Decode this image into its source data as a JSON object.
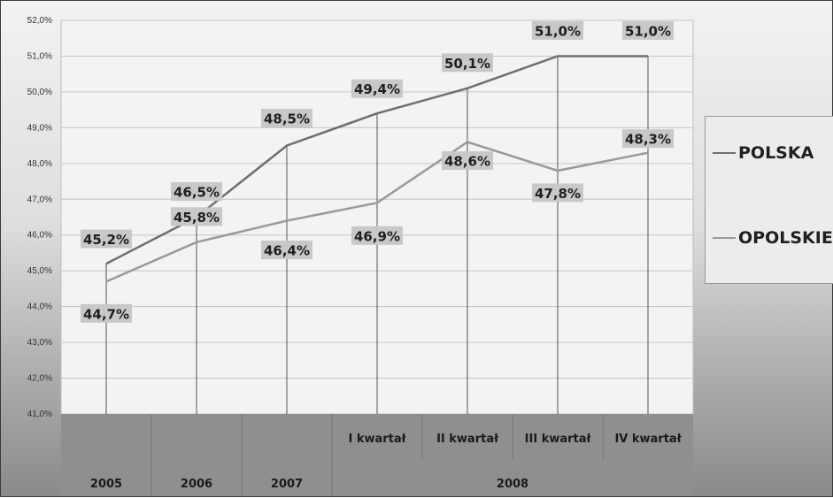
{
  "chart_data": {
    "type": "line",
    "categories": [
      "2005",
      "2006",
      "2007",
      "I kwartał",
      "II kwartał",
      "III kwartał",
      "IV kwartał"
    ],
    "group_labels": [
      {
        "label": "2005",
        "span": [
          0,
          0
        ]
      },
      {
        "label": "2006",
        "span": [
          1,
          1
        ]
      },
      {
        "label": "2007",
        "span": [
          2,
          2
        ]
      },
      {
        "label": "2008",
        "span": [
          3,
          6
        ]
      }
    ],
    "series": [
      {
        "name": "POLSKA",
        "color": "#6f6f6f",
        "values": [
          45.2,
          46.5,
          48.5,
          49.4,
          50.1,
          51.0,
          51.0
        ],
        "labels": [
          "45,2%",
          "46,5%",
          "48,5%",
          "49,4%",
          "50,1%",
          "51,0%",
          "51,0%"
        ]
      },
      {
        "name": "OPOLSKIE",
        "color": "#9a9a9a",
        "values": [
          44.7,
          45.8,
          46.4,
          46.9,
          48.6,
          47.8,
          48.3
        ],
        "labels": [
          "44,7%",
          "45,8%",
          "46,4%",
          "46,9%",
          "48,6%",
          "47,8%",
          "48,3%"
        ]
      }
    ],
    "ylim": [
      41.0,
      52.0
    ],
    "ytick_labels": [
      "41,0%",
      "42,0%",
      "43,0%",
      "44,0%",
      "45,0%",
      "46,0%",
      "47,0%",
      "48,0%",
      "49,0%",
      "50,0%",
      "51,0%",
      "52,0%"
    ],
    "grid": true,
    "legend": "right"
  }
}
